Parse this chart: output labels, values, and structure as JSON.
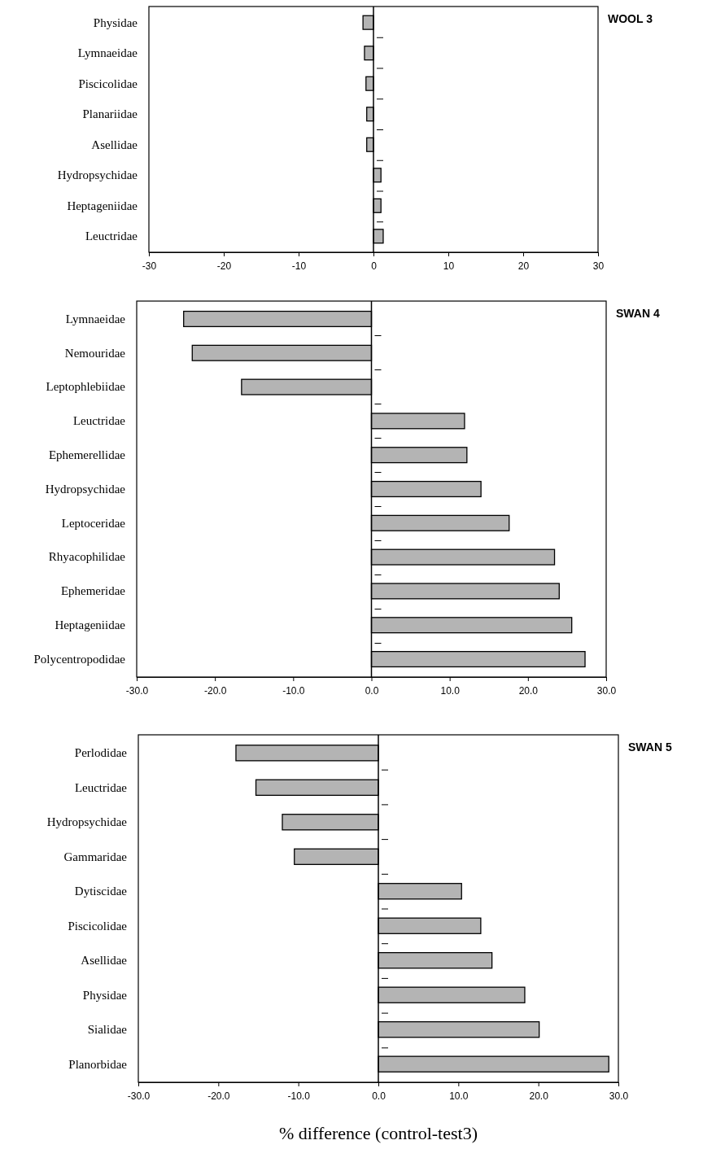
{
  "chart_data": [
    {
      "type": "bar",
      "orientation": "horizontal",
      "title": "WOOL 3",
      "categories": [
        "Physidae",
        "Lymnaeidae",
        "Piscicolidae",
        "Planariidae",
        "Asellidae",
        "Hydropsychidae",
        "Heptageniidae",
        "Leuctridae"
      ],
      "values": [
        -1.4,
        -1.2,
        -1.0,
        -0.9,
        -0.9,
        1.0,
        1.0,
        1.3
      ],
      "color": "#b4b4b4",
      "xlim": [
        -30,
        30
      ],
      "xticks": [
        -30,
        -20,
        -10,
        0,
        10,
        20,
        30
      ]
    },
    {
      "type": "bar",
      "orientation": "horizontal",
      "title": "SWAN 4",
      "categories": [
        "Lymnaeidae",
        "Nemouridae",
        "Leptophlebiidae",
        "Leuctridae",
        "Ephemerellidae",
        "Hydropsychidae",
        "Leptoceridae",
        "Rhyacophilidae",
        "Ephemeridae",
        "Heptageniidae",
        "Polycentropodidae"
      ],
      "values": [
        -24.0,
        -22.9,
        -16.6,
        11.9,
        12.2,
        14.0,
        17.6,
        23.4,
        24.0,
        25.6,
        27.3
      ],
      "color": "#b4b4b4",
      "xlim": [
        -30,
        30
      ],
      "xticks": [
        {
          "value": -30,
          "label": "-30.0"
        },
        {
          "value": -20,
          "label": "-20.0"
        },
        {
          "value": -10,
          "label": "-10.0"
        },
        {
          "value": 0,
          "label": "0.0"
        },
        {
          "value": 10,
          "label": "10.0"
        },
        {
          "value": 20,
          "label": "20.0"
        },
        {
          "value": 30,
          "label": "30.0"
        }
      ]
    },
    {
      "type": "bar",
      "orientation": "horizontal",
      "title": "SWAN 5",
      "xlabel": "% difference (control-test3)",
      "categories": [
        "Perlodidae",
        "Leuctridae",
        "Hydropsychidae",
        "Gammaridae",
        "Dytiscidae",
        "Piscicolidae",
        "Asellidae",
        "Physidae",
        "Sialidae",
        "Planorbidae"
      ],
      "values": [
        -17.8,
        -15.3,
        -12.0,
        -10.5,
        10.4,
        12.8,
        14.2,
        18.3,
        20.1,
        28.8
      ],
      "color": "#b4b4b4",
      "xlim": [
        -30,
        30
      ],
      "xticks": [
        {
          "value": -30,
          "label": "-30.0"
        },
        {
          "value": -20,
          "label": "-20.0"
        },
        {
          "value": -10,
          "label": "-10.0"
        },
        {
          "value": 0,
          "label": "0.0"
        },
        {
          "value": 10,
          "label": "10.0"
        },
        {
          "value": 20,
          "label": "20.0"
        },
        {
          "value": 30,
          "label": "30.0"
        }
      ]
    }
  ]
}
